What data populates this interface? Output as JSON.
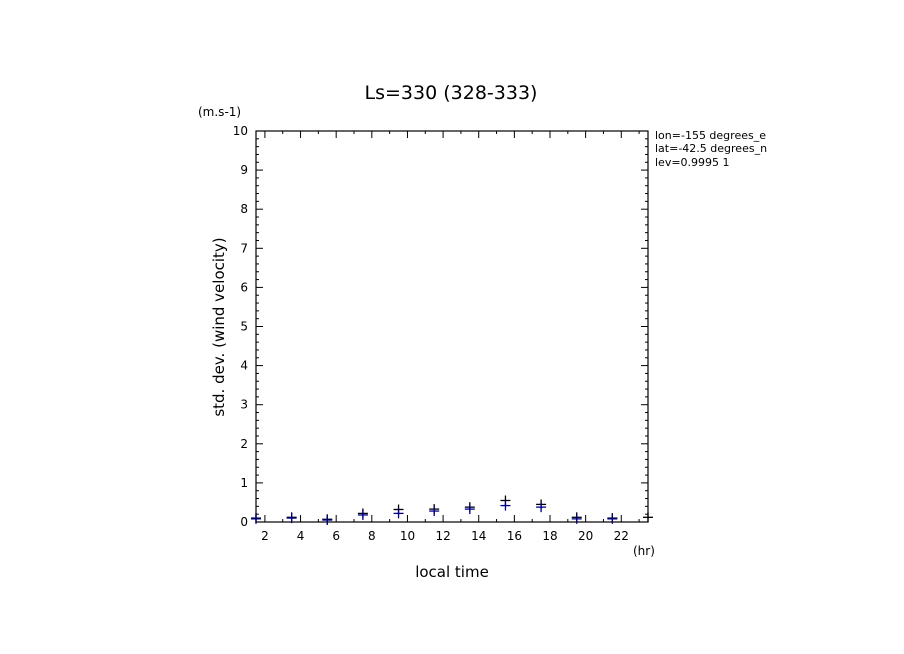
{
  "chart_data": {
    "type": "scatter",
    "title": "Ls=330 (328-333)",
    "xlabel": "local time",
    "ylabel": "std. dev. (wind velocity)",
    "xunit": "(hr)",
    "yunit": "(m.s-1)",
    "xlim": [
      1.5,
      23.5
    ],
    "ylim": [
      0,
      10
    ],
    "xticks": [
      2,
      4,
      6,
      8,
      10,
      12,
      14,
      16,
      18,
      20,
      22
    ],
    "yticks": [
      0,
      1,
      2,
      3,
      4,
      5,
      6,
      7,
      8,
      9,
      10
    ],
    "grid": false,
    "annotations": [
      "lon=-155 degrees_e",
      "lat=-42.5 degrees_n",
      "lev=0.9995 1"
    ],
    "series": [
      {
        "marker": "+",
        "color": "#000000",
        "x": [
          1.5,
          3.5,
          5.5,
          7.5,
          9.5,
          11.5,
          13.5,
          15.5,
          17.5,
          19.5,
          21.5,
          23.5
        ],
        "y": [
          0.1,
          0.12,
          0.07,
          0.22,
          0.32,
          0.33,
          0.38,
          0.55,
          0.45,
          0.12,
          0.1,
          0.12
        ]
      },
      {
        "marker": "+",
        "color": "#00008b",
        "x": [
          1.5,
          3.5,
          5.5,
          7.5,
          9.5,
          11.5,
          13.5,
          15.5,
          17.5,
          19.5,
          21.5
        ],
        "y": [
          0.08,
          0.1,
          0.05,
          0.18,
          0.22,
          0.28,
          0.33,
          0.42,
          0.38,
          0.08,
          0.08
        ]
      }
    ]
  }
}
